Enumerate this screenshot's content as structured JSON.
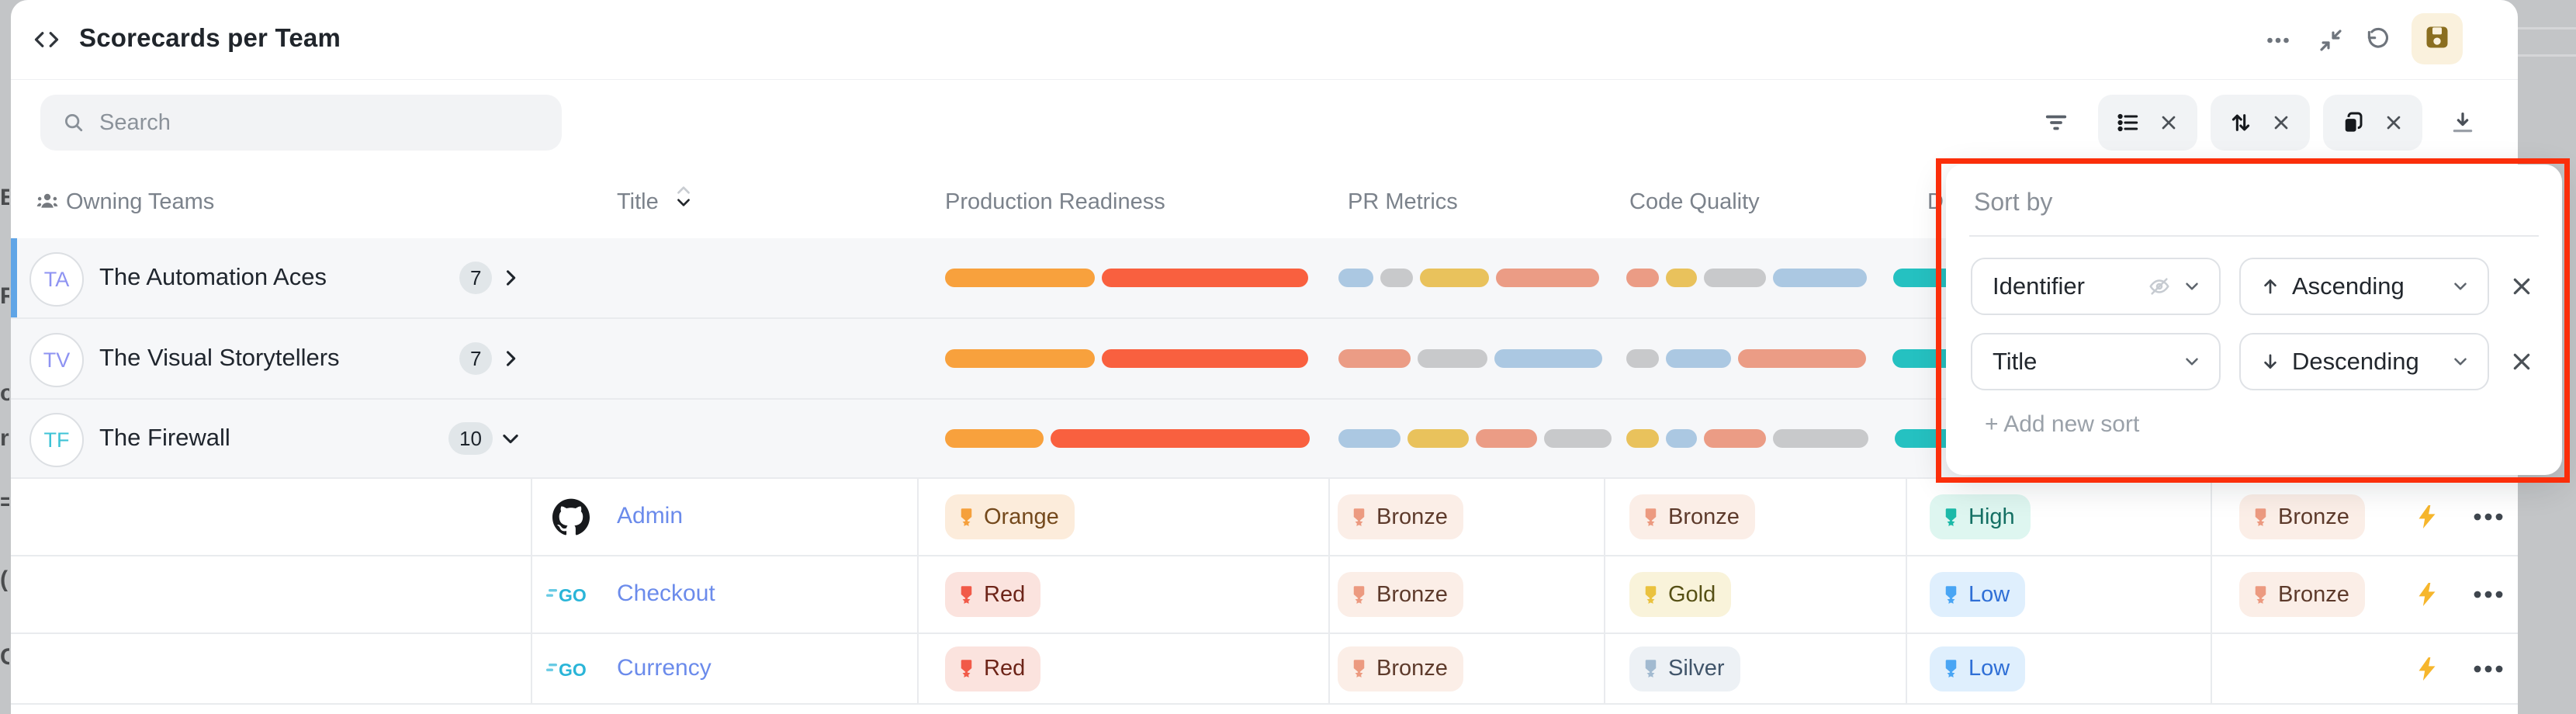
{
  "window": {
    "title": "Scorecards per Team"
  },
  "header_actions": [
    "more-options",
    "collapse",
    "undo",
    "save"
  ],
  "toolbar": {
    "search_placeholder": "Search",
    "buttons": [
      "filter",
      "view-list",
      "sort-updown",
      "group-copy",
      "download"
    ]
  },
  "columns": {
    "owning_teams": "Owning Teams",
    "title": "Title",
    "production_readiness": "Production Readiness",
    "pr_metrics": "PR Metrics",
    "code_quality": "Code Quality",
    "d_truncated": "D"
  },
  "sort_panel": {
    "title": "Sort by",
    "rows": [
      {
        "field": "Identifier",
        "field_icon": "eye-off",
        "direction": "Ascending",
        "direction_icon": "arrow-up"
      },
      {
        "field": "Title",
        "field_icon": null,
        "direction": "Descending",
        "direction_icon": "arrow-down"
      }
    ],
    "add_new": "+ Add new sort"
  },
  "groups": [
    {
      "initials": "TA",
      "initials_color": "#8e93f2",
      "name": "The Automation Aces",
      "count": "7",
      "chevron": "right",
      "selected": true,
      "bars": {
        "production_readiness": [
          [
            "orange",
            193
          ],
          [
            "tomato",
            266
          ]
        ],
        "pr_metrics": [
          [
            "blue",
            45
          ],
          [
            "gray",
            42
          ],
          [
            "yellow",
            89
          ],
          [
            "salmon",
            133
          ]
        ],
        "code_quality": [
          [
            "salmon",
            42
          ],
          [
            "yellow",
            40
          ],
          [
            "gray",
            80
          ],
          [
            "blue",
            121
          ],
          [
            "teal",
            85
          ]
        ]
      }
    },
    {
      "initials": "TV",
      "initials_color": "#8e93f2",
      "name": "The Visual Storytellers",
      "count": "7",
      "chevron": "right",
      "selected": false,
      "bars": {
        "production_readiness": [
          [
            "orange",
            193
          ],
          [
            "tomato",
            266
          ]
        ],
        "pr_metrics": [
          [
            "salmon",
            93
          ],
          [
            "gray",
            90
          ],
          [
            "blue",
            139
          ]
        ],
        "code_quality": [
          [
            "gray",
            42
          ],
          [
            "blue",
            84
          ],
          [
            "salmon",
            165
          ],
          [
            "teal",
            85
          ]
        ]
      }
    },
    {
      "initials": "TF",
      "initials_color": "#3ec3d6",
      "name": "The Firewall",
      "count": "10",
      "chevron": "down",
      "selected": false,
      "bars": {
        "production_readiness": [
          [
            "orange",
            127
          ],
          [
            "tomato",
            334
          ]
        ],
        "pr_metrics": [
          [
            "blue",
            80
          ],
          [
            "yellow",
            79
          ],
          [
            "salmon",
            79
          ],
          [
            "gray",
            87
          ]
        ],
        "code_quality": [
          [
            "yellow",
            42
          ],
          [
            "blue",
            40
          ],
          [
            "salmon",
            80
          ],
          [
            "gray",
            123
          ],
          [
            "teal",
            85
          ]
        ]
      }
    }
  ],
  "details": [
    {
      "icon": "github",
      "title": "Admin",
      "badges": {
        "production_readiness": {
          "label": "Orange",
          "tone": "orange"
        },
        "pr_metrics": {
          "label": "Bronze",
          "tone": "bronze"
        },
        "code_quality": {
          "label": "Bronze",
          "tone": "bronze"
        },
        "column_d": {
          "label": "High",
          "tone": "high"
        },
        "column_e": {
          "label": "Bronze",
          "tone": "bronze"
        }
      },
      "actions": [
        "bolt",
        "more"
      ]
    },
    {
      "icon": "go",
      "title": "Checkout",
      "badges": {
        "production_readiness": {
          "label": "Red",
          "tone": "red"
        },
        "pr_metrics": {
          "label": "Bronze",
          "tone": "bronze"
        },
        "code_quality": {
          "label": "Gold",
          "tone": "gold"
        },
        "column_d": {
          "label": "Low",
          "tone": "low"
        },
        "column_e": {
          "label": "Bronze",
          "tone": "bronze"
        }
      },
      "actions": [
        "bolt",
        "more"
      ]
    },
    {
      "icon": "go",
      "title": "Currency",
      "badges": {
        "production_readiness": {
          "label": "Red",
          "tone": "red"
        },
        "pr_metrics": {
          "label": "Bronze",
          "tone": "bronze"
        },
        "code_quality": {
          "label": "Silver",
          "tone": "silver"
        },
        "column_d": {
          "label": "Low",
          "tone": "low"
        },
        "column_e": null
      },
      "actions": [
        "bolt",
        "more"
      ]
    }
  ],
  "tones": {
    "orange": {
      "bg": "#fcecdb",
      "icon": "#f5a03c",
      "text": "#74491c"
    },
    "red": {
      "bg": "#fbe3de",
      "icon": "#f15a48",
      "text": "#6d2418"
    },
    "bronze": {
      "bg": "#fbeee7",
      "icon": "#ec9a80",
      "text": "#5d3a2b"
    },
    "gold": {
      "bg": "#f9f3da",
      "icon": "#eac23e",
      "text": "#565015"
    },
    "silver": {
      "bg": "#edf1f5",
      "icon": "#a2bad0",
      "text": "#41556a"
    },
    "high": {
      "bg": "#def6f0",
      "icon": "#1cb9a8",
      "text": "#147064"
    },
    "low": {
      "bg": "#dfeffd",
      "icon": "#49a5f4",
      "text": "#2f6fd6"
    }
  },
  "bar_colors": {
    "orange": "#f8a13d",
    "tomato": "#f9603f",
    "salmon": "#eb9c85",
    "yellow": "#e9c25c",
    "blue": "#abc8e2",
    "gray": "#c8c9cb",
    "teal": "#25c1c1"
  },
  "accents": {
    "link": "#6b8beb",
    "selected_row_bar": "#60a5e6",
    "annotation": "#fb2e0a",
    "bolt": "#f6b62c",
    "save_icon": "#8a6e20"
  }
}
